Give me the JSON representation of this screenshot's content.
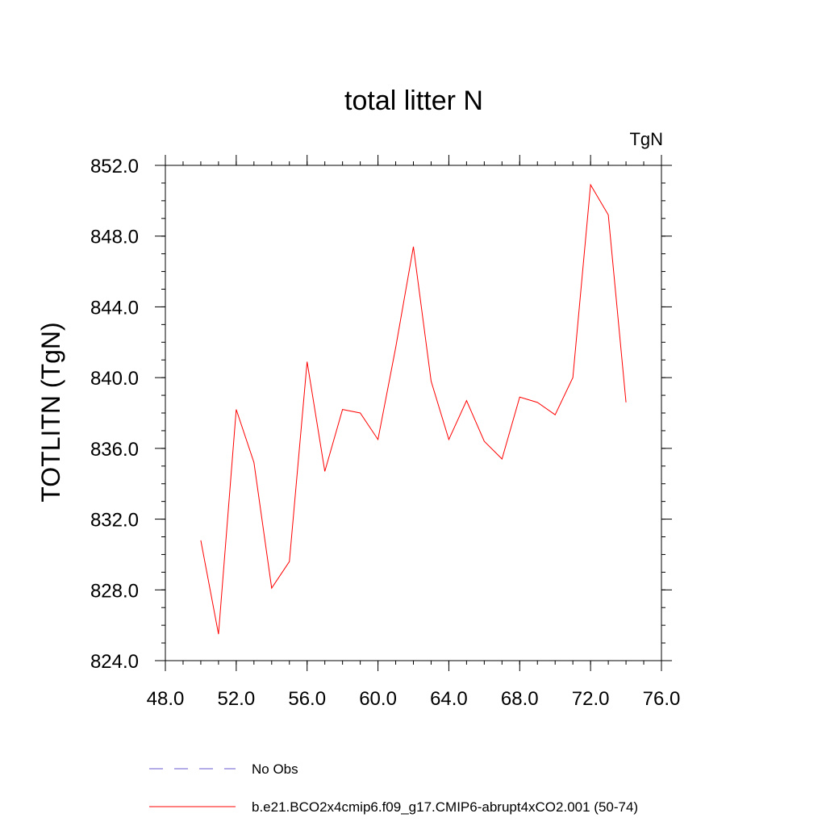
{
  "chart_data": {
    "type": "line",
    "title": "total litter N",
    "units_label": "TgN",
    "xlabel": "",
    "ylabel": "TOTLITN  (TgN)",
    "xlim": [
      48,
      76
    ],
    "ylim": [
      824,
      852
    ],
    "x_ticks": [
      48,
      52,
      56,
      60,
      64,
      68,
      72,
      76
    ],
    "y_ticks": [
      824,
      828,
      832,
      836,
      840,
      844,
      848,
      852
    ],
    "x_tick_labels": [
      "48.0",
      "52.0",
      "56.0",
      "60.0",
      "64.0",
      "68.0",
      "72.0",
      "76.0"
    ],
    "y_tick_labels": [
      "824.0",
      "828.0",
      "832.0",
      "836.0",
      "840.0",
      "844.0",
      "848.0",
      "852.0"
    ],
    "grid": false,
    "legend_position": "bottom",
    "series": [
      {
        "name": "b.e21.BCO2x4cmip6.f09_g17.CMIP6-abrupt4xCO2.001 (50-74)",
        "color": "#ff0000",
        "style": "solid",
        "x": [
          50,
          51,
          52,
          53,
          54,
          55,
          56,
          57,
          58,
          59,
          60,
          61,
          62,
          63,
          64,
          65,
          66,
          67,
          68,
          69,
          70,
          71,
          72,
          73,
          74
        ],
        "y": [
          830.8,
          825.5,
          838.2,
          835.2,
          828.1,
          829.6,
          840.9,
          834.7,
          838.2,
          838.0,
          836.5,
          841.7,
          847.4,
          839.8,
          836.5,
          838.7,
          836.4,
          835.4,
          838.9,
          838.6,
          837.9,
          840.0,
          850.9,
          849.2,
          838.6
        ]
      },
      {
        "name": "No Obs",
        "color": "#6a5acd",
        "style": "dashed",
        "x": [],
        "y": []
      }
    ]
  }
}
